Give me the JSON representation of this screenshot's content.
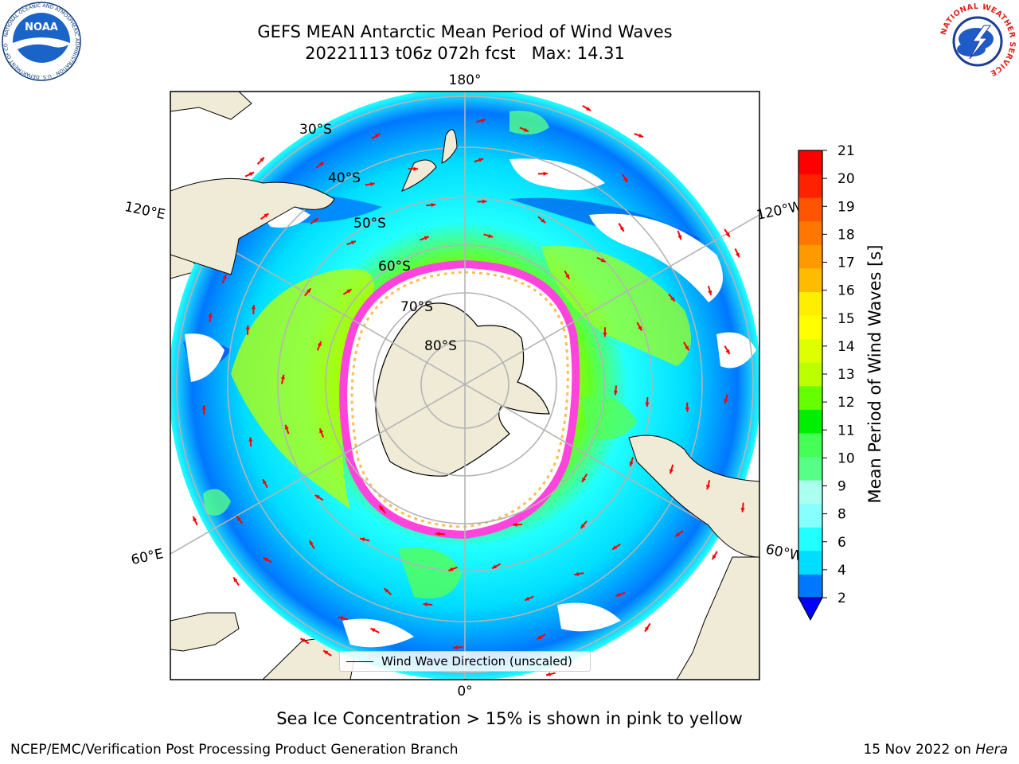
{
  "title": {
    "line1": "GEFS MEAN Antarctic Mean Period of Wind Waves",
    "line2": "20221113 t06z 072h fcst   Max: 14.31"
  },
  "logos": {
    "left": {
      "name": "noaa-logo",
      "text": "NOAA",
      "ring_text": "NATIONAL OCEANIC AND ATMOSPHERIC ADMINISTRATION · U.S. DEPARTMENT OF COMMERCE"
    },
    "right": {
      "name": "nws-logo",
      "ring_text": "NATIONAL WEATHER SERVICE"
    }
  },
  "map": {
    "projection": "south-polar-stereographic",
    "longitude_labels": {
      "top": "180°",
      "bottom": "0°",
      "upper_left": "120°E",
      "upper_right": "120°W",
      "lower_left": "60°E",
      "lower_right": "60°W"
    },
    "latitude_labels": [
      "30°S",
      "40°S",
      "50°S",
      "60°S",
      "70°S",
      "80°S"
    ],
    "colors": {
      "land": "#efebd7",
      "ice_edge": "#ff44dd",
      "ice_inner": "#ffbb55",
      "arrow": "#ff0000",
      "grid": "#b4b4b4"
    }
  },
  "colorbar": {
    "label": "Mean Period of Wind Waves [s]",
    "ticks": [
      "2",
      "4",
      "6",
      "8",
      "9",
      "10",
      "11",
      "12",
      "13",
      "14",
      "15",
      "16",
      "17",
      "18",
      "19",
      "20",
      "21"
    ],
    "bin_colors": [
      "#0077ff",
      "#00ddff",
      "#22ffff",
      "#88ffff",
      "#aaffee",
      "#55ff88",
      "#44ff55",
      "#00ee00",
      "#66ff00",
      "#bbff00",
      "#ddff00",
      "#ffff00",
      "#ffee00",
      "#ffbb00",
      "#ff9900",
      "#ff7700",
      "#ff5500",
      "#ff2200",
      "#ff0000"
    ],
    "extend_color": "#0000ff"
  },
  "legend": {
    "label": "Wind Wave Direction (unscaled)"
  },
  "footer": {
    "ice_note": "Sea Ice Concentration > 15% is shown in pink to yellow",
    "credit": "NCEP/EMC/Verification Post Processing Product Generation Branch",
    "date": "15 Nov 2022 on ",
    "machine": "Hera"
  }
}
